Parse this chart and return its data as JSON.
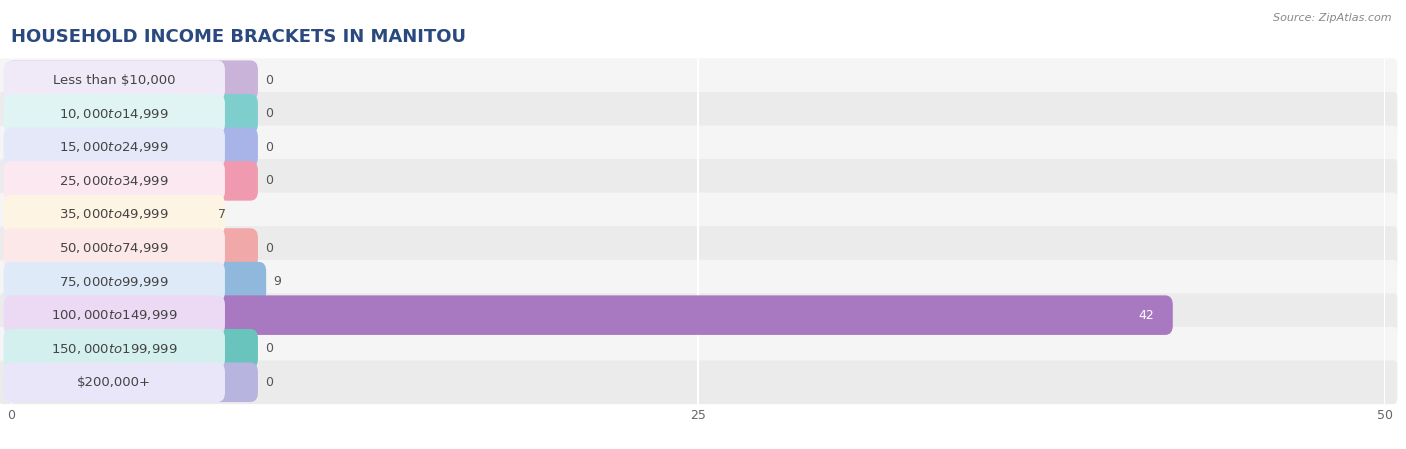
{
  "title": "HOUSEHOLD INCOME BRACKETS IN MANITOU",
  "source": "Source: ZipAtlas.com",
  "categories": [
    "Less than $10,000",
    "$10,000 to $14,999",
    "$15,000 to $24,999",
    "$25,000 to $34,999",
    "$35,000 to $49,999",
    "$50,000 to $74,999",
    "$75,000 to $99,999",
    "$100,000 to $149,999",
    "$150,000 to $199,999",
    "$200,000+"
  ],
  "values": [
    0,
    0,
    0,
    0,
    7,
    0,
    9,
    42,
    0,
    0
  ],
  "bar_colors": [
    "#c9b3d9",
    "#7ecece",
    "#a8b4e8",
    "#f09ab0",
    "#f8c88a",
    "#f0a8a8",
    "#90b8dc",
    "#a878c0",
    "#68c4bc",
    "#b8b4e0"
  ],
  "label_bg_colors": [
    "#f0eaf8",
    "#e0f4f4",
    "#e4e8f8",
    "#fce8f0",
    "#fef4e4",
    "#fce8e8",
    "#deeaf8",
    "#ecdaf4",
    "#d4f0ee",
    "#e8e6f8"
  ],
  "row_bg_colors": [
    "#f5f5f5",
    "#ebebeb"
  ],
  "xlim": [
    0,
    50
  ],
  "xticks": [
    0,
    25,
    50
  ],
  "bg_color": "#f9f9f9",
  "bar_height": 0.62,
  "title_fontsize": 13,
  "label_fontsize": 9.5,
  "value_fontsize": 9,
  "grid_color": "#ffffff",
  "row_sep_color": "#e0e0e0"
}
